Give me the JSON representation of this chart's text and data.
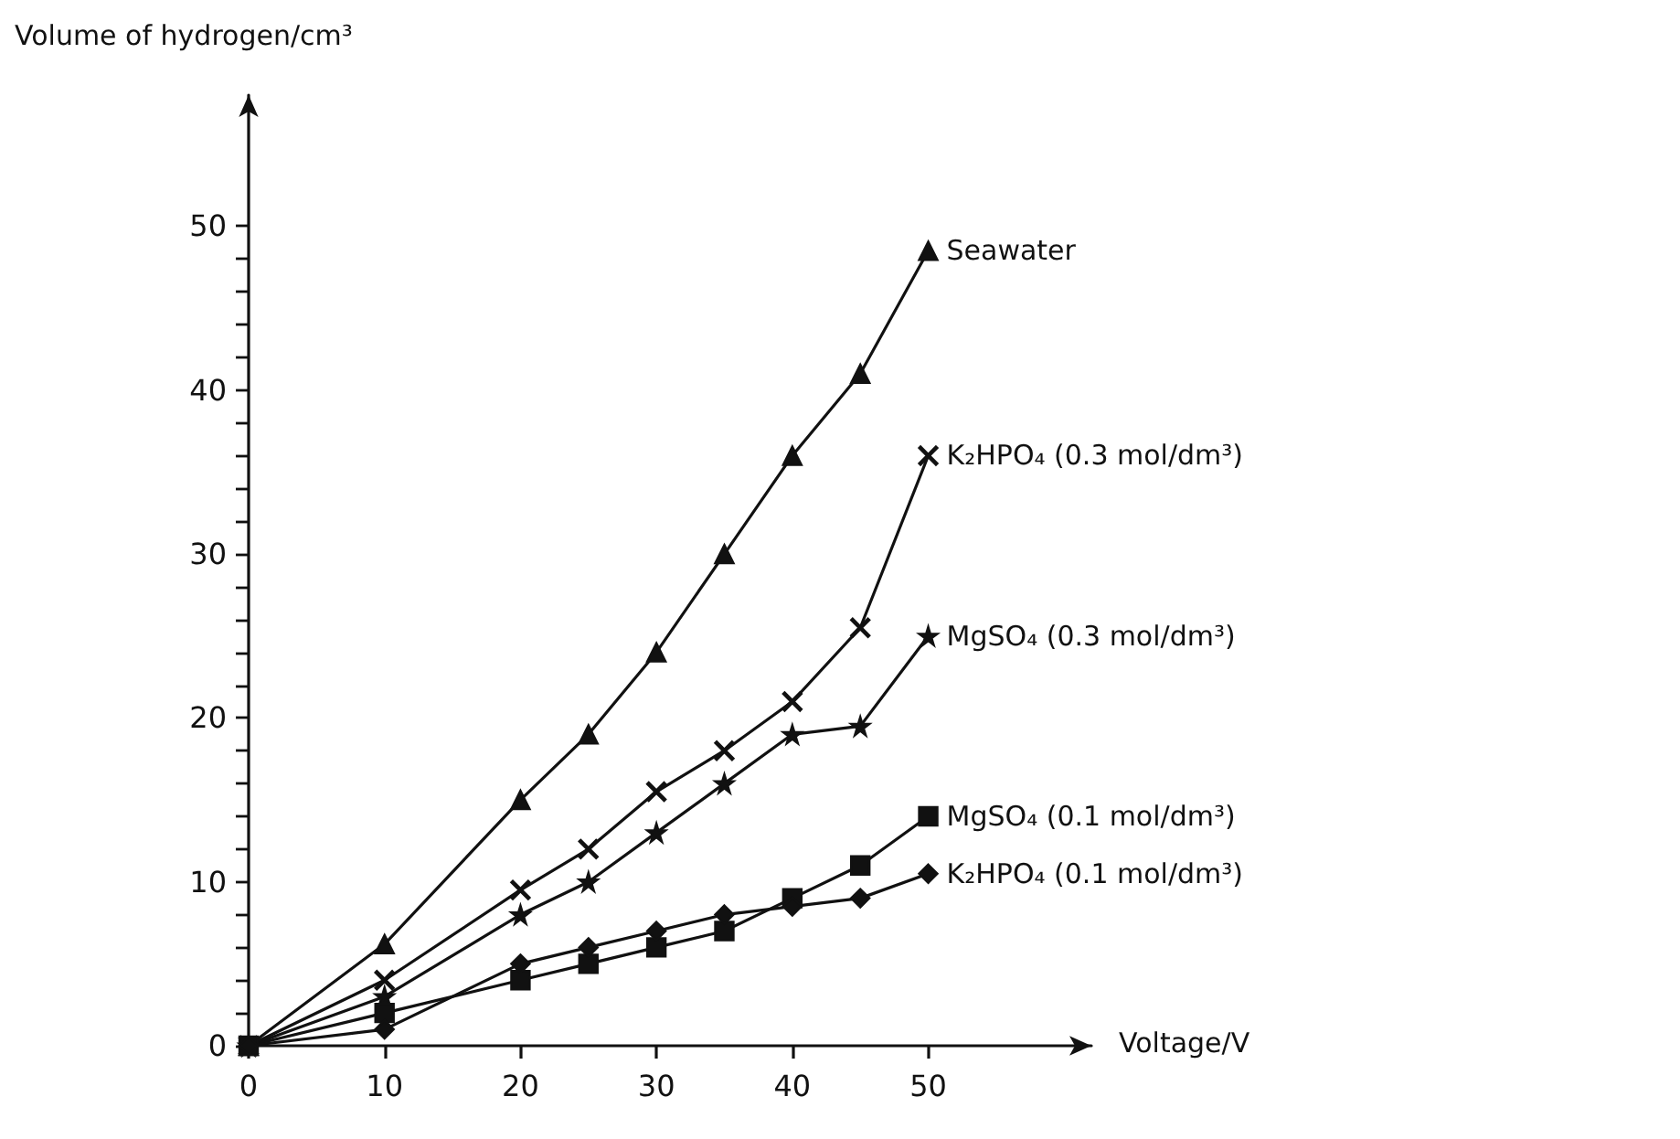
{
  "chart_data": {
    "type": "line",
    "xlabel": "Voltage/V",
    "ylabel": "Volume of hydrogen/cm³",
    "x": [
      0,
      10,
      20,
      25,
      30,
      35,
      40,
      45,
      50
    ],
    "xlim": [
      0,
      62
    ],
    "xticks": [
      0,
      10,
      20,
      30,
      40,
      50
    ],
    "ylim": [
      0,
      58
    ],
    "yticks": [
      0,
      {
        "value": 2,
        "label": null
      },
      {
        "value": 4,
        "label": null
      },
      {
        "value": 6,
        "label": null
      },
      {
        "value": 8,
        "label": null
      },
      10,
      {
        "value": 12,
        "label": null
      },
      {
        "value": 14,
        "label": null
      },
      {
        "value": 16,
        "label": null
      },
      {
        "value": 18,
        "label": null
      },
      20,
      {
        "value": 22,
        "label": null
      },
      {
        "value": 24,
        "label": null
      },
      {
        "value": 26,
        "label": null
      },
      {
        "value": 28,
        "label": null
      },
      30,
      {
        "value": 32,
        "label": null
      },
      {
        "value": 34,
        "label": null
      },
      {
        "value": 36,
        "label": null
      },
      {
        "value": 38,
        "label": null
      },
      40,
      {
        "value": 42,
        "label": null
      },
      {
        "value": 44,
        "label": null
      },
      {
        "value": 46,
        "label": null
      },
      {
        "value": 48,
        "label": null
      },
      50
    ],
    "grid": false,
    "legend": false,
    "line_style": "solid",
    "series": [
      {
        "name": "Seawater",
        "color": "#111111",
        "marker": "triangle",
        "values": [
          0,
          6.2,
          15,
          19,
          24,
          30,
          36,
          41,
          48.5
        ]
      },
      {
        "name": "K₂HPO₄ (0.3 mol/dm³)",
        "color": "#111111",
        "marker": "cross",
        "values": [
          0,
          4,
          9.5,
          12,
          15.5,
          18,
          21,
          25.5,
          36
        ]
      },
      {
        "name": "MgSO₄ (0.3 mol/dm³)",
        "color": "#111111",
        "marker": "star",
        "values": [
          0,
          3,
          8,
          10,
          13,
          16,
          19,
          19.5,
          25
        ]
      },
      {
        "name": "MgSO₄ (0.1 mol/dm³)",
        "color": "#111111",
        "marker": "square",
        "values": [
          0,
          2,
          4,
          5,
          6,
          7,
          9,
          11,
          14
        ]
      },
      {
        "name": "K₂HPO₄ (0.1 mol/dm³)",
        "color": "#111111",
        "marker": "diamond",
        "values": [
          0,
          1,
          5,
          6,
          7,
          8,
          8.5,
          9,
          10.5
        ]
      }
    ]
  }
}
